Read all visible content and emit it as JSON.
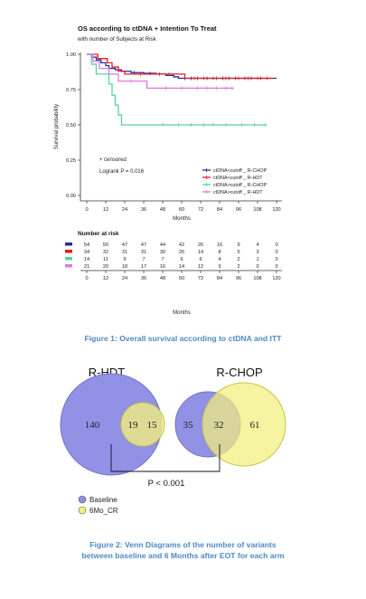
{
  "chart_data": [
    {
      "type": "line",
      "subtype": "kaplan-meier",
      "title": "OS according to ctDNA + Intention To Treat",
      "subtitle": "with number of Subjects at Risk",
      "xlabel": "Months",
      "ylabel": "Survival probability",
      "xlim": [
        0,
        120
      ],
      "ylim": [
        0,
        1
      ],
      "xticks": [
        0,
        12,
        24,
        36,
        48,
        60,
        72,
        84,
        96,
        108,
        120
      ],
      "yticks": [
        0.0,
        0.25,
        0.5,
        0.75,
        1.0
      ],
      "ytick_labels": [
        "0.00",
        "0.25",
        "0.50",
        "0.75",
        "1.00"
      ],
      "grid": false,
      "legend_position": "bottom-right",
      "censored_label": "+ censored",
      "logrank": "Logrank P = 0.016",
      "series": [
        {
          "name": "ctDNA<cutoff _ R-CHOP",
          "color": "#1f2f9e",
          "steps": [
            [
              0,
              1.0
            ],
            [
              3,
              0.98
            ],
            [
              6,
              0.96
            ],
            [
              9,
              0.94
            ],
            [
              12,
              0.92
            ],
            [
              14,
              0.9
            ],
            [
              18,
              0.89
            ],
            [
              22,
              0.88
            ],
            [
              28,
              0.87
            ],
            [
              36,
              0.865
            ],
            [
              44,
              0.86
            ],
            [
              50,
              0.85
            ],
            [
              55,
              0.84
            ],
            [
              58,
              0.83
            ],
            [
              120,
              0.83
            ]
          ],
          "censor_x": [
            30,
            40,
            62,
            66,
            70,
            76,
            80,
            86,
            90,
            94,
            100,
            104,
            110
          ]
        },
        {
          "name": "ctDNA<cutoff _ R-HDT",
          "color": "#e51c1c",
          "steps": [
            [
              0,
              1.0
            ],
            [
              7,
              0.97
            ],
            [
              13,
              0.94
            ],
            [
              16,
              0.91
            ],
            [
              20,
              0.88
            ],
            [
              24,
              0.86
            ],
            [
              58,
              0.86
            ],
            [
              62,
              0.83
            ],
            [
              118,
              0.83
            ]
          ],
          "censor_x": [
            34,
            46,
            52,
            68,
            74,
            82,
            88,
            96,
            102,
            108,
            114
          ]
        },
        {
          "name": "ctDNA>cutoff _ R-CHOP",
          "color": "#54d59c",
          "steps": [
            [
              0,
              1.0
            ],
            [
              3,
              0.93
            ],
            [
              6,
              0.86
            ],
            [
              12,
              0.86
            ],
            [
              14,
              0.79
            ],
            [
              16,
              0.71
            ],
            [
              18,
              0.64
            ],
            [
              20,
              0.57
            ],
            [
              22,
              0.5
            ],
            [
              113,
              0.5
            ]
          ],
          "censor_x": [
            48,
            58,
            66,
            74,
            80,
            88,
            98,
            106,
            113
          ]
        },
        {
          "name": "ctDNA>cutoff _ R-HDT",
          "color": "#e079de",
          "steps": [
            [
              0,
              1.0
            ],
            [
              4,
              0.95
            ],
            [
              8,
              0.9
            ],
            [
              14,
              0.86
            ],
            [
              20,
              0.81
            ],
            [
              32,
              0.81
            ],
            [
              38,
              0.76
            ],
            [
              92,
              0.76
            ]
          ],
          "censor_x": [
            28,
            50,
            60,
            70,
            76,
            82,
            88,
            92
          ]
        }
      ]
    },
    {
      "type": "table",
      "title": "Number at risk",
      "xlabel": "Months",
      "columns": [
        0,
        12,
        24,
        36,
        48,
        60,
        72,
        84,
        96,
        108,
        120
      ],
      "rows": [
        {
          "color": "#1f2f9e",
          "values": [
            54,
            50,
            47,
            47,
            44,
            42,
            26,
            16,
            9,
            4,
            0
          ]
        },
        {
          "color": "#e51c1c",
          "values": [
            34,
            32,
            31,
            31,
            30,
            26,
            14,
            8,
            5,
            3,
            0
          ]
        },
        {
          "color": "#54d59c",
          "values": [
            14,
            11,
            9,
            7,
            7,
            6,
            6,
            4,
            2,
            1,
            0
          ]
        },
        {
          "color": "#e079de",
          "values": [
            21,
            20,
            18,
            17,
            16,
            14,
            12,
            9,
            2,
            0,
            0
          ]
        }
      ]
    },
    {
      "type": "venn",
      "diagrams": [
        {
          "title": "R-HDT",
          "baseline_only": 140,
          "overlap": 19,
          "mo6_only": 15
        },
        {
          "title": "R-CHOP",
          "baseline_only": 35,
          "overlap": 32,
          "mo6_only": 61
        }
      ],
      "pvalue": "P < 0.001",
      "legend": [
        {
          "label": "Baseline",
          "color": "#8f8fe0"
        },
        {
          "label": "6Mo_CR",
          "color": "#f5f07a"
        }
      ]
    }
  ],
  "captions": {
    "fig1": "Figure 1: Overall survival according to ctDNA and ITT",
    "fig2_line1": "Figure 2: Venn Diagrams of the number of variants",
    "fig2_line2": "between baseline and 6 Months after EOT for each arm"
  }
}
